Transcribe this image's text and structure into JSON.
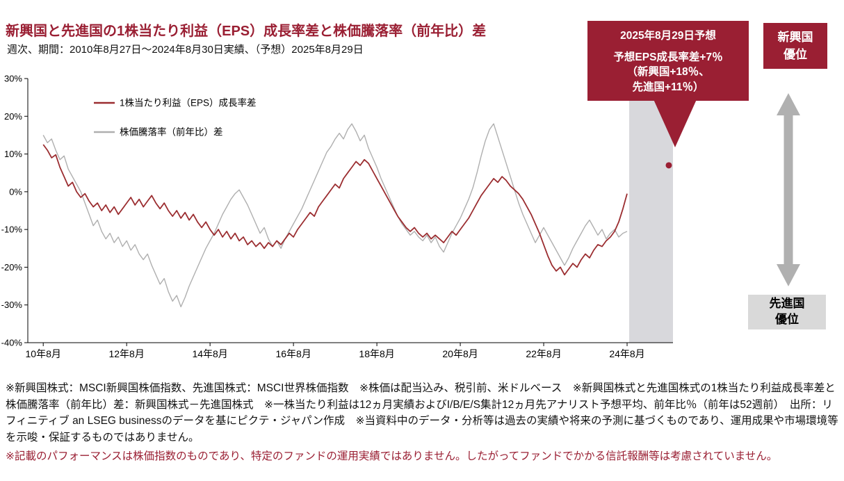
{
  "page": {
    "title": "新興国と先進国の1株当たり利益（EPS）成長率差と株価騰落率（前年比）差",
    "subtitle": "週次、期間：2010年8月27日～2024年8月30日実績、（予想）2025年8月29日"
  },
  "callout": {
    "heading": "2025年8月29日予想",
    "body_line1": "予想EPS成長率差+7％",
    "body_line2": "（新興国+18％、",
    "body_line3": "先進国+11％）"
  },
  "side_panel": {
    "top_label_line1": "新興国",
    "top_label_line2": "優位",
    "bottom_label_line1": "先進国",
    "bottom_label_line2": "優位"
  },
  "footnotes": {
    "note1": "※新興国株式：MSCI新興国株価指数、先進国株式：MSCI世界株価指数　※株価は配当込み、税引前、米ドルベース　※新興国株式と先進国株式の1株当たり利益成長率差と株価騰落率（前年比）差：新興国株式－先進国株式　※一株当たり利益は12ヵ月実績およびI/B/E/S集計12ヵ月先アナリスト予想平均、前年比％（前年は52週前）　出所：リフィニティブ an LSEG businessのデータを基にピクテ・ジャパン作成　※当資料中のデータ・分析等は過去の実績や将来の予測に基づくものであり、運用成果や市場環境等を示唆・保証するものではありません。",
    "note2": "※記載のパフォーマンスは株価指数のものであり、特定のファンドの運用実績ではありません。したがってファンドでかかる信託報酬等は考慮されていません。"
  },
  "colors": {
    "accent_red": "#9a1f33",
    "eps_line_red": "#9b2d30",
    "price_line_gray": "#afafaf",
    "forecast_band_gray": "#d8d8dc",
    "developed_box_gray": "#d9d9d9",
    "arrow_gray": "#b0b0b0"
  },
  "chart_data": {
    "type": "line",
    "title": "新興国と先進国の1株当たり利益（EPS）成長率差と株価騰落率（前年比）差",
    "x_unit": "decimal_year",
    "xlim": [
      2010.28,
      2025.75
    ],
    "ylim": [
      -40,
      30
    ],
    "grid": false,
    "legend_position": "top-left",
    "x_start": 2010.65,
    "x_step": 0.1,
    "point_count": 141,
    "y_ticks": [
      {
        "v": 30,
        "label": "30%"
      },
      {
        "v": 20,
        "label": "20%"
      },
      {
        "v": 10,
        "label": "10%"
      },
      {
        "v": 0,
        "label": "0%"
      },
      {
        "v": -10,
        "label": "-10%"
      },
      {
        "v": -20,
        "label": "-20%"
      },
      {
        "v": -30,
        "label": "-30%"
      },
      {
        "v": -40,
        "label": "-40%"
      }
    ],
    "x_ticks": [
      {
        "x": 2010.65,
        "label": "10年8月"
      },
      {
        "x": 2012.65,
        "label": "12年8月"
      },
      {
        "x": 2014.65,
        "label": "14年8月"
      },
      {
        "x": 2016.65,
        "label": "16年8月"
      },
      {
        "x": 2018.65,
        "label": "18年8月"
      },
      {
        "x": 2020.65,
        "label": "20年8月"
      },
      {
        "x": 2022.65,
        "label": "22年8月"
      },
      {
        "x": 2024.65,
        "label": "24年8月"
      }
    ],
    "forecast_band": {
      "start": 2024.7,
      "end": 2025.75
    },
    "forecast_point": {
      "x": 2025.65,
      "value": 7,
      "label": "2025年8月29日予想 予想EPS成長率差+7％（新興国+18％、先進国+11％）"
    },
    "series": [
      {
        "name": "1株当たり利益（EPS）成長率差",
        "color": "#9b2d30",
        "width": 1.8,
        "values": [
          12.5,
          11,
          9,
          9.8,
          6.5,
          4,
          1.5,
          2.5,
          0,
          -1.5,
          -0.5,
          -2.5,
          -4,
          -3,
          -5,
          -3.5,
          -5.5,
          -4,
          -6,
          -4.5,
          -3,
          -1.5,
          -3.5,
          -2,
          -4,
          -2.5,
          -1,
          -3,
          -4.5,
          -3,
          -5,
          -6.5,
          -5,
          -7,
          -5.5,
          -7.5,
          -6,
          -8,
          -9.5,
          -8,
          -10,
          -11.5,
          -10,
          -12,
          -10.5,
          -12.5,
          -11,
          -13,
          -12,
          -14,
          -13,
          -14.5,
          -13.5,
          -15,
          -13.5,
          -14.5,
          -13,
          -14,
          -12.5,
          -11,
          -12,
          -10,
          -8.5,
          -7,
          -5.5,
          -6.5,
          -4,
          -2.5,
          -1,
          0.5,
          2,
          1,
          3.5,
          5,
          6.5,
          8,
          7,
          8.5,
          7.5,
          5.5,
          3.5,
          1.5,
          -0.5,
          -2.5,
          -4.5,
          -6.5,
          -8,
          -9.5,
          -10.5,
          -9.5,
          -11,
          -12,
          -11,
          -12.5,
          -11.5,
          -12.5,
          -13.5,
          -12,
          -10.5,
          -11.5,
          -10,
          -8.5,
          -7,
          -5,
          -3,
          -1,
          0.5,
          2,
          3.5,
          2.5,
          4,
          3,
          1.5,
          0.5,
          -0.5,
          -2,
          -4,
          -6,
          -8.5,
          -11,
          -14,
          -17,
          -19.5,
          -21,
          -20,
          -22,
          -20.5,
          -19,
          -20,
          -18,
          -16.5,
          -17.5,
          -15.5,
          -14,
          -14.5,
          -13,
          -12,
          -10.5,
          -8,
          -4.5,
          -0.5
        ]
      },
      {
        "name": "株価騰落率（前年比）差",
        "color": "#afafaf",
        "width": 1.4,
        "values": [
          15,
          13,
          14,
          11,
          8.5,
          9.5,
          6,
          4,
          2,
          0,
          -3,
          -6,
          -9,
          -7.5,
          -10.5,
          -12.5,
          -11,
          -13.5,
          -12,
          -14.5,
          -13,
          -15.5,
          -14,
          -16.5,
          -18,
          -16.5,
          -19.5,
          -22,
          -24.5,
          -23,
          -26.5,
          -29,
          -27.5,
          -30.5,
          -28,
          -25,
          -22.5,
          -20,
          -17.5,
          -15,
          -13,
          -11,
          -8.5,
          -6,
          -4,
          -2,
          -0.5,
          0.5,
          -1.5,
          -3.5,
          -6,
          -8.5,
          -11,
          -9.5,
          -12.5,
          -14.5,
          -13,
          -15,
          -12.5,
          -10.5,
          -8.5,
          -6.5,
          -4.5,
          -2,
          0.5,
          3,
          5.5,
          8,
          10.5,
          12,
          14,
          15.5,
          14,
          16.5,
          18,
          16,
          13.5,
          15,
          11.5,
          9,
          6.5,
          3.5,
          1,
          -1.5,
          -4,
          -6.5,
          -8.5,
          -10,
          -11.5,
          -10.5,
          -12,
          -13,
          -11.5,
          -13.5,
          -12,
          -14.5,
          -16,
          -13.5,
          -11,
          -9,
          -7,
          -4.5,
          -2,
          1,
          5,
          9.5,
          13.5,
          16.5,
          18,
          14.5,
          11,
          7.5,
          4,
          0.5,
          -3,
          -6,
          -8.5,
          -11,
          -13.5,
          -11.5,
          -9.5,
          -11.5,
          -13.5,
          -15.5,
          -17.5,
          -19.5,
          -17.5,
          -15,
          -13,
          -11,
          -9,
          -7.5,
          -9.5,
          -11.5,
          -10,
          -12.5,
          -11,
          -10,
          -12,
          -11,
          -10.5
        ]
      }
    ]
  }
}
